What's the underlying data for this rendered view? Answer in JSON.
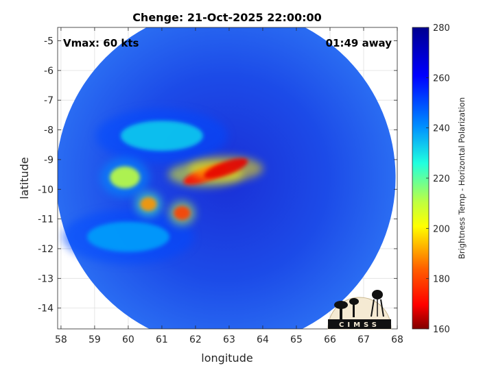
{
  "chart_data": {
    "type": "heatmap",
    "title": "Chenge: 21-Oct-2025 22:00:00",
    "xlabel": "longitude",
    "ylabel": "latitude",
    "xlim": [
      57.9,
      68.0
    ],
    "ylim": [
      -14.7,
      -4.55
    ],
    "xticks": [
      58,
      59,
      60,
      61,
      62,
      63,
      64,
      65,
      66,
      67,
      68
    ],
    "xtick_labels": [
      "58",
      "59",
      "60",
      "61",
      "62",
      "63",
      "64",
      "65",
      "66",
      "67",
      "68"
    ],
    "yticks": [
      -5,
      -6,
      -7,
      -8,
      -9,
      -10,
      -11,
      -12,
      -13,
      -14
    ],
    "ytick_labels": [
      "-5",
      "-6",
      "-7",
      "-8",
      "-9",
      "-10",
      "-11",
      "-12",
      "-13",
      "-14"
    ],
    "grid": true,
    "annotations": [
      {
        "text": "Vmax: 60 kts",
        "position": "top-left"
      },
      {
        "text": "01:49 away",
        "position": "top-right"
      }
    ],
    "swath_center": [
      62.9,
      -9.6
    ],
    "swath_radius_degrees": 5.05,
    "background_value": 262,
    "features": [
      {
        "lon": 62.9,
        "lat": -9.3,
        "value": 168
      },
      {
        "lon": 62.3,
        "lat": -9.5,
        "value": 172
      },
      {
        "lon": 61.6,
        "lat": -10.8,
        "value": 180
      },
      {
        "lon": 60.6,
        "lat": -10.5,
        "value": 190
      },
      {
        "lon": 59.9,
        "lat": -9.6,
        "value": 210
      },
      {
        "lon": 61.0,
        "lat": -8.2,
        "value": 232
      },
      {
        "lon": 60.0,
        "lat": -11.6,
        "value": 238
      }
    ],
    "colorbar": {
      "label": "Brightness Temp - Horizontal Polarization",
      "range": [
        160,
        280
      ],
      "ticks": [
        280,
        260,
        240,
        220,
        200,
        180,
        160
      ],
      "tick_labels": [
        "280",
        "260",
        "240",
        "220",
        "200",
        "180",
        "160"
      ]
    }
  },
  "logo": {
    "text": "CIMSS"
  }
}
